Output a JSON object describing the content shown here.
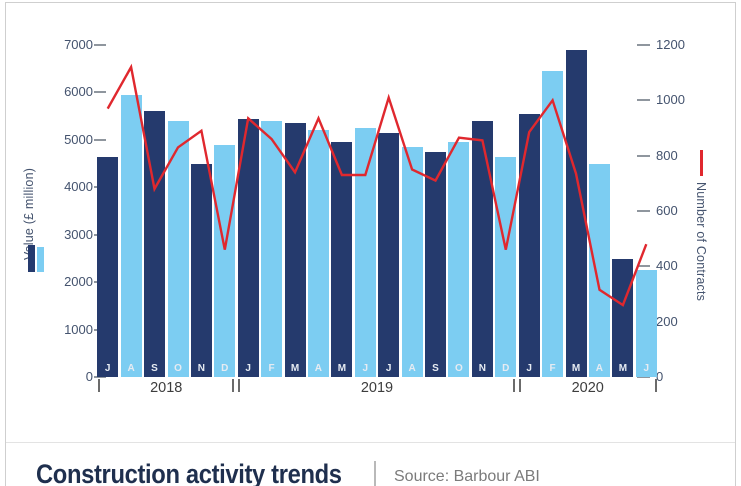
{
  "title": {
    "text": "Construction activity trends",
    "separator": "|",
    "source": "Source: Barbour ABI"
  },
  "chart_data": {
    "type": "bar",
    "subtype": "bar+line combo, dual axis",
    "categories": [
      "J",
      "A",
      "S",
      "O",
      "N",
      "D",
      "J",
      "F",
      "M",
      "A",
      "M",
      "J",
      "J",
      "A",
      "S",
      "O",
      "N",
      "D",
      "J",
      "F",
      "M",
      "A",
      "M",
      "J"
    ],
    "year_groups": [
      {
        "label": "2018",
        "start": 0,
        "end": 5
      },
      {
        "label": "2019",
        "start": 6,
        "end": 17
      },
      {
        "label": "2020",
        "start": 18,
        "end": 23
      }
    ],
    "series": [
      {
        "name": "Value (£ million)",
        "type": "bar",
        "axis": "left",
        "values": [
          4650,
          5950,
          5600,
          5400,
          4500,
          4900,
          5450,
          5400,
          5350,
          5200,
          4950,
          5250,
          5150,
          4850,
          4750,
          4950,
          5400,
          4650,
          5550,
          6450,
          6900,
          4500,
          2480,
          2250
        ]
      },
      {
        "name": "Number of Contracts",
        "type": "line",
        "axis": "right",
        "values": [
          970,
          1120,
          680,
          830,
          890,
          460,
          935,
          860,
          740,
          935,
          730,
          730,
          1010,
          750,
          710,
          865,
          855,
          460,
          885,
          1000,
          735,
          315,
          260,
          480
        ]
      }
    ],
    "left_axis": {
      "label": "Value (£ million)",
      "min": 0,
      "max": 7000,
      "ticks": [
        7000,
        6000,
        5000,
        4000,
        3000,
        2000,
        1000,
        0
      ]
    },
    "right_axis": {
      "label": "Number of Contracts",
      "min": 0,
      "max": 1200,
      "ticks": [
        1200,
        1000,
        800,
        600,
        400,
        200,
        0
      ]
    },
    "grid": false,
    "legend_position": "beside-axis-titles"
  },
  "colors": {
    "bar_dark": "#253a6d",
    "bar_light": "#7ccdf2",
    "line": "#e0282e",
    "axis_text": "#44536e",
    "tick": "#8f969e",
    "month_label": "#e6ebf2",
    "year_text": "#3d3d3d",
    "title": "#1f2f4e",
    "source": "#7b7b7b",
    "divider": "#e3e3e3",
    "frame_border": "#cfcfcf"
  }
}
